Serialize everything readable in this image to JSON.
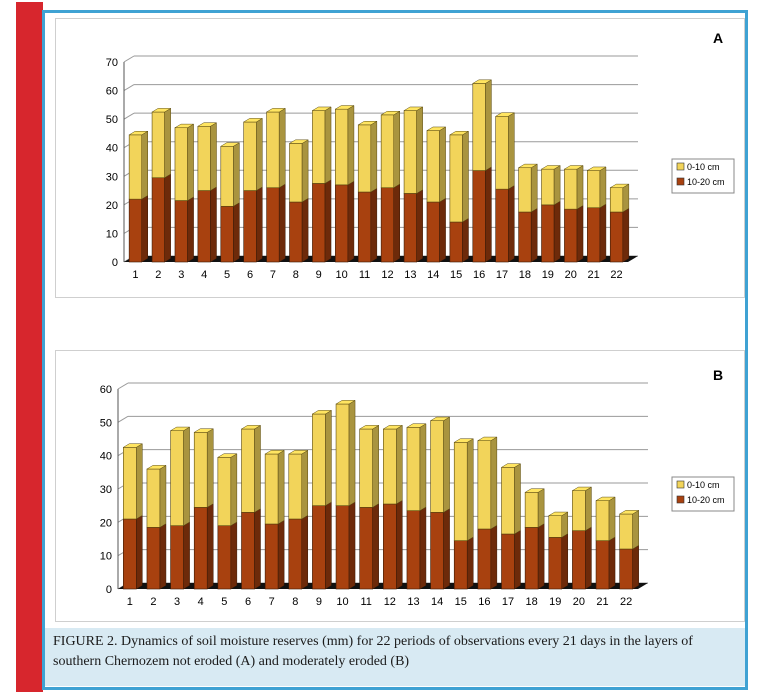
{
  "caption": "FIGURE 2. Dynamics of soil moisture reserves (mm) for 22 periods of observations every 21 days in the layers of southern Chernozem not eroded (A) and moderately eroded (B)",
  "colors": {
    "upper": "#f2d45a",
    "lower": "#a8410f",
    "accent_red": "#d7262d",
    "frame_blue": "#3fa2d3",
    "caption_bg": "#d8eaf3"
  },
  "chart_data": [
    {
      "type": "bar",
      "stacked": true,
      "panel_label": "A",
      "categories": [
        "1",
        "2",
        "3",
        "4",
        "5",
        "6",
        "7",
        "8",
        "9",
        "10",
        "11",
        "12",
        "13",
        "14",
        "15",
        "16",
        "17",
        "18",
        "19",
        "20",
        "21",
        "22"
      ],
      "ylim": [
        0,
        70
      ],
      "yticks": [
        0,
        10,
        20,
        30,
        40,
        50,
        60,
        70
      ],
      "grid": true,
      "legend_position": "right",
      "series": [
        {
          "name": "10-20 cm",
          "values": [
            22,
            29.5,
            21.5,
            25,
            19.5,
            25,
            26,
            21,
            27.5,
            27,
            24.5,
            26,
            24,
            21,
            14,
            32,
            25.5,
            17.5,
            20,
            18.5,
            19,
            17.5
          ]
        },
        {
          "name": "0-10 cm",
          "values": [
            22.5,
            23,
            25.5,
            22.5,
            21,
            24,
            26.5,
            20.5,
            25.5,
            26.5,
            23.5,
            25.5,
            29,
            25,
            30.5,
            30.5,
            25.5,
            15.5,
            12.5,
            14,
            13,
            8.5
          ]
        }
      ]
    },
    {
      "type": "bar",
      "stacked": true,
      "panel_label": "B",
      "categories": [
        "1",
        "2",
        "3",
        "4",
        "5",
        "6",
        "7",
        "8",
        "9",
        "10",
        "11",
        "12",
        "13",
        "14",
        "15",
        "16",
        "17",
        "18",
        "19",
        "20",
        "21",
        "22"
      ],
      "ylim": [
        0,
        60
      ],
      "yticks": [
        0,
        10,
        20,
        30,
        40,
        50,
        60
      ],
      "grid": true,
      "legend_position": "right",
      "series": [
        {
          "name": "10-20 cm",
          "values": [
            21,
            18.5,
            19,
            24.5,
            19,
            23,
            19.5,
            21,
            25,
            25,
            24.5,
            25.5,
            23.5,
            23,
            14.5,
            18,
            16.5,
            18.5,
            15.5,
            17.5,
            14.5,
            12
          ]
        },
        {
          "name": "0-10 cm",
          "values": [
            21.5,
            17.5,
            28.5,
            22.5,
            20.5,
            25,
            21,
            19.5,
            27.5,
            30.5,
            23.5,
            22.5,
            25,
            27.5,
            29.5,
            26.5,
            20,
            10.5,
            6.5,
            12,
            12,
            10.5
          ]
        }
      ]
    }
  ]
}
